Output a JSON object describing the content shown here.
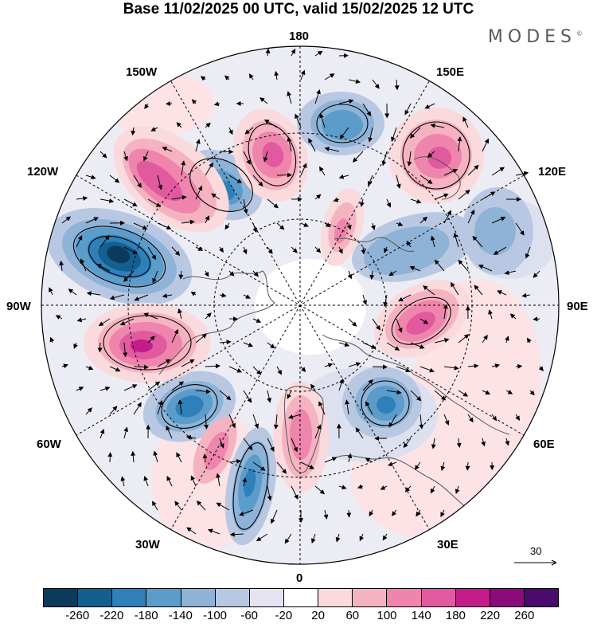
{
  "title": "Base 11/02/2025 00 UTC, valid 15/02/2025 12 UTC",
  "brand": "MODES",
  "brand_mark": "©",
  "lon_labels": {
    "top": "180",
    "bottom": "0",
    "left": "90W",
    "right": "90E",
    "nw": "150W",
    "ne": "150E",
    "wnw": "120W",
    "ene": "120E",
    "wsw": "60W",
    "ese": "60E",
    "sw": "30W",
    "se": "30E"
  },
  "reference_vector": "30",
  "colorbar": {
    "colors": [
      "#0b3a5c",
      "#135f8f",
      "#2f80b9",
      "#5c9ccb",
      "#8eb3d7",
      "#b9c8e2",
      "#e3e3f1",
      "#ffffff",
      "#fadadd",
      "#f5b3c2",
      "#ef85ac",
      "#e15a9f",
      "#c41c8b",
      "#8c0a7c",
      "#4a0a6e"
    ],
    "ticks": [
      "-260",
      "-220",
      "-180",
      "-140",
      "-100",
      "-60",
      "-20",
      "20",
      "60",
      "100",
      "140",
      "180",
      "220",
      "260"
    ]
  },
  "colors": {
    "background": "#ffffff",
    "grid": "#000000",
    "coast": "#555555"
  }
}
